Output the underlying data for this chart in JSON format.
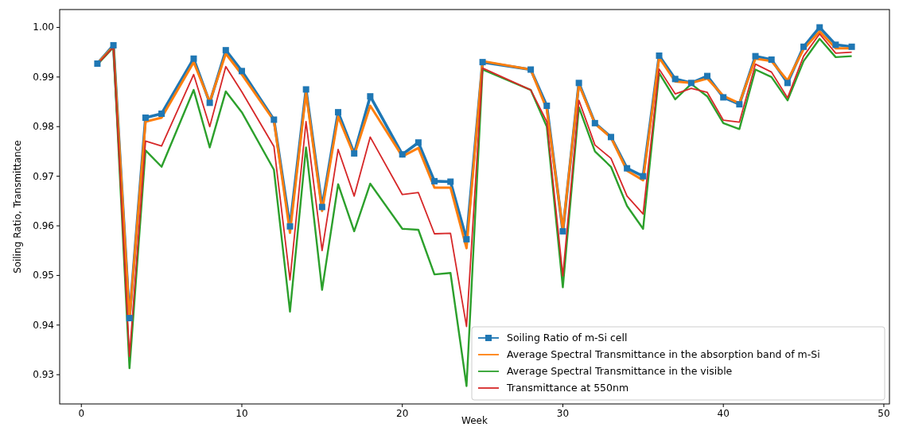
{
  "chart_data": {
    "type": "line",
    "xlabel": "Week",
    "ylabel": "Soiling Ratio, Transmittance",
    "x": [
      1,
      2,
      3,
      4,
      5,
      7,
      8,
      9,
      10,
      12,
      13,
      14,
      15,
      16,
      17,
      18,
      20,
      21,
      22,
      23,
      24,
      25,
      28,
      29,
      30,
      31,
      32,
      33,
      34,
      35,
      36,
      37,
      38,
      39,
      40,
      41,
      42,
      43,
      44,
      45,
      46,
      47,
      48
    ],
    "series": [
      {
        "name": "Soiling Ratio of m-Si cell",
        "color": "#1f77b4",
        "marker": "square",
        "values": [
          0.9927,
          0.9964,
          0.9414,
          0.9818,
          0.9826,
          0.9937,
          0.9848,
          0.9954,
          0.9912,
          0.9814,
          0.9599,
          0.9875,
          0.9638,
          0.9829,
          0.9746,
          0.9861,
          0.9744,
          0.9768,
          0.969,
          0.9689,
          0.9573,
          0.993,
          0.9915,
          0.9842,
          0.9589,
          0.9888,
          0.9807,
          0.9779,
          0.9716,
          0.97,
          0.9943,
          0.9896,
          0.9888,
          0.9902,
          0.9859,
          0.9845,
          0.9942,
          0.9935,
          0.9888,
          0.9961,
          1.0,
          0.9965,
          0.9961
        ]
      },
      {
        "name": "Average Spectral Transmittance in the absorption band of m-Si",
        "color": "#ff7f0e",
        "marker": "none",
        "values": [
          0.9927,
          0.9962,
          0.9412,
          0.981,
          0.9818,
          0.993,
          0.985,
          0.9947,
          0.9905,
          0.9812,
          0.9586,
          0.9868,
          0.963,
          0.982,
          0.9742,
          0.9842,
          0.974,
          0.9757,
          0.9677,
          0.9677,
          0.9555,
          0.9932,
          0.9915,
          0.9835,
          0.9592,
          0.9885,
          0.9806,
          0.9778,
          0.9711,
          0.9692,
          0.9939,
          0.9891,
          0.9888,
          0.9897,
          0.9862,
          0.9847,
          0.9937,
          0.9932,
          0.9893,
          0.9956,
          0.9992,
          0.9958,
          0.9958
        ]
      },
      {
        "name": "Average Spectral Transmittance in the visible",
        "color": "#2ca02c",
        "marker": "none",
        "values": [
          0.9925,
          0.996,
          0.9313,
          0.9752,
          0.9719,
          0.9874,
          0.9758,
          0.9871,
          0.9829,
          0.9713,
          0.9427,
          0.9758,
          0.9471,
          0.9684,
          0.9589,
          0.9685,
          0.9594,
          0.9592,
          0.9502,
          0.9505,
          0.9277,
          0.9915,
          0.9874,
          0.98,
          0.9476,
          0.9839,
          0.975,
          0.9719,
          0.964,
          0.9594,
          0.9908,
          0.9855,
          0.9886,
          0.9861,
          0.9807,
          0.9795,
          0.9915,
          0.99,
          0.9853,
          0.9932,
          0.9977,
          0.994,
          0.9942
        ]
      },
      {
        "name": "Transmittance at 550nm",
        "color": "#d62728",
        "marker": "none",
        "values": [
          0.9926,
          0.996,
          0.9337,
          0.9771,
          0.9761,
          0.9905,
          0.98,
          0.9921,
          0.987,
          0.976,
          0.9491,
          0.981,
          0.955,
          0.9754,
          0.966,
          0.9779,
          0.9663,
          0.9667,
          0.9584,
          0.9585,
          0.9397,
          0.9918,
          0.9874,
          0.981,
          0.9499,
          0.9853,
          0.9763,
          0.9736,
          0.966,
          0.9624,
          0.9916,
          0.9866,
          0.9877,
          0.9869,
          0.9813,
          0.9809,
          0.9926,
          0.991,
          0.9858,
          0.9942,
          0.9987,
          0.9948,
          0.995
        ]
      }
    ],
    "xlim": [
      -1.35,
      50.35
    ],
    "xticks": [
      0,
      10,
      20,
      30,
      40,
      50
    ],
    "ylim": [
      0.9241,
      1.0036
    ],
    "yticks": [
      {
        "value": 0.93,
        "label": "0.93"
      },
      {
        "value": 0.94,
        "label": "0.94"
      },
      {
        "value": 0.95,
        "label": "0.95"
      },
      {
        "value": 0.96,
        "label": "0.96"
      },
      {
        "value": 0.97,
        "label": "0.97"
      },
      {
        "value": 0.98,
        "label": "0.98"
      },
      {
        "value": 0.99,
        "label": "0.99"
      },
      {
        "value": 1.0,
        "label": "1.00"
      }
    ],
    "grid": false,
    "legend": "bottom right",
    "line_style": "solid"
  }
}
